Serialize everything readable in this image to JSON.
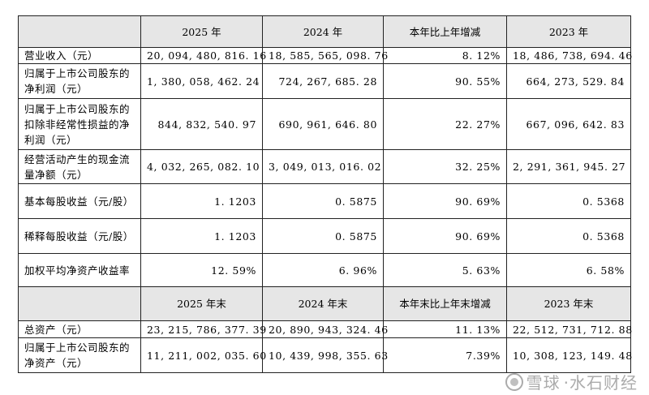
{
  "header1": {
    "c1": "2025 年",
    "c2": "2024 年",
    "c3": "本年比上年增减",
    "c4": "2023 年"
  },
  "rows1": [
    {
      "label": "营业收入（元）",
      "v2025": "20, 094, 480, 816. 16",
      "v2024": "18, 585, 565, 098. 76",
      "change": "8. 12%",
      "v2023": "18, 486, 738, 694. 46"
    },
    {
      "label": "归属于上市公司股东的净利润（元）",
      "v2025": "1, 380, 058, 462. 24",
      "v2024": "724, 267, 685. 28",
      "change": "90. 55%",
      "v2023": "664, 273, 529. 84"
    },
    {
      "label": "归属于上市公司股东的扣除非经常性损益的净利润（元）",
      "v2025": "844, 832, 540. 97",
      "v2024": "690, 961, 646. 80",
      "change": "22. 27%",
      "v2023": "667, 096, 642. 83"
    },
    {
      "label": "经营活动产生的现金流量净额（元）",
      "v2025": "4, 032, 265, 082. 10",
      "v2024": "3, 049, 013, 016. 02",
      "change": "32. 25%",
      "v2023": "2, 291, 361, 945. 27"
    },
    {
      "label": "基本每股收益（元/股）",
      "v2025": "1. 1203",
      "v2024": "0. 5875",
      "change": "90. 69%",
      "v2023": "0. 5368"
    },
    {
      "label": "稀释每股收益（元/股）",
      "v2025": "1. 1203",
      "v2024": "0. 5875",
      "change": "90. 69%",
      "v2023": "0. 5368"
    },
    {
      "label": "加权平均净资产收益率",
      "v2025": "12. 59%",
      "v2024": "6. 96%",
      "change": "5. 63%",
      "v2023": "6. 58%"
    }
  ],
  "header2": {
    "c1": "2025 年末",
    "c2": "2024 年末",
    "c3": "本年末比上年末增减",
    "c4": "2023 年末"
  },
  "rows2": [
    {
      "label": "总资产（元）",
      "v2025": "23, 215, 786, 377. 39",
      "v2024": "20, 890, 943, 324. 46",
      "change": "11. 13%",
      "v2023": "22, 512, 731, 712. 88"
    },
    {
      "label": "归属于上市公司股东的净资产（元）",
      "v2025": "11, 211, 002, 035. 60",
      "v2024": "10, 439, 998, 355. 63",
      "change": "7.39%",
      "v2023": "10, 308, 123, 149. 48"
    }
  ],
  "watermark": {
    "brand": "雪球",
    "author": "·水石财经"
  }
}
